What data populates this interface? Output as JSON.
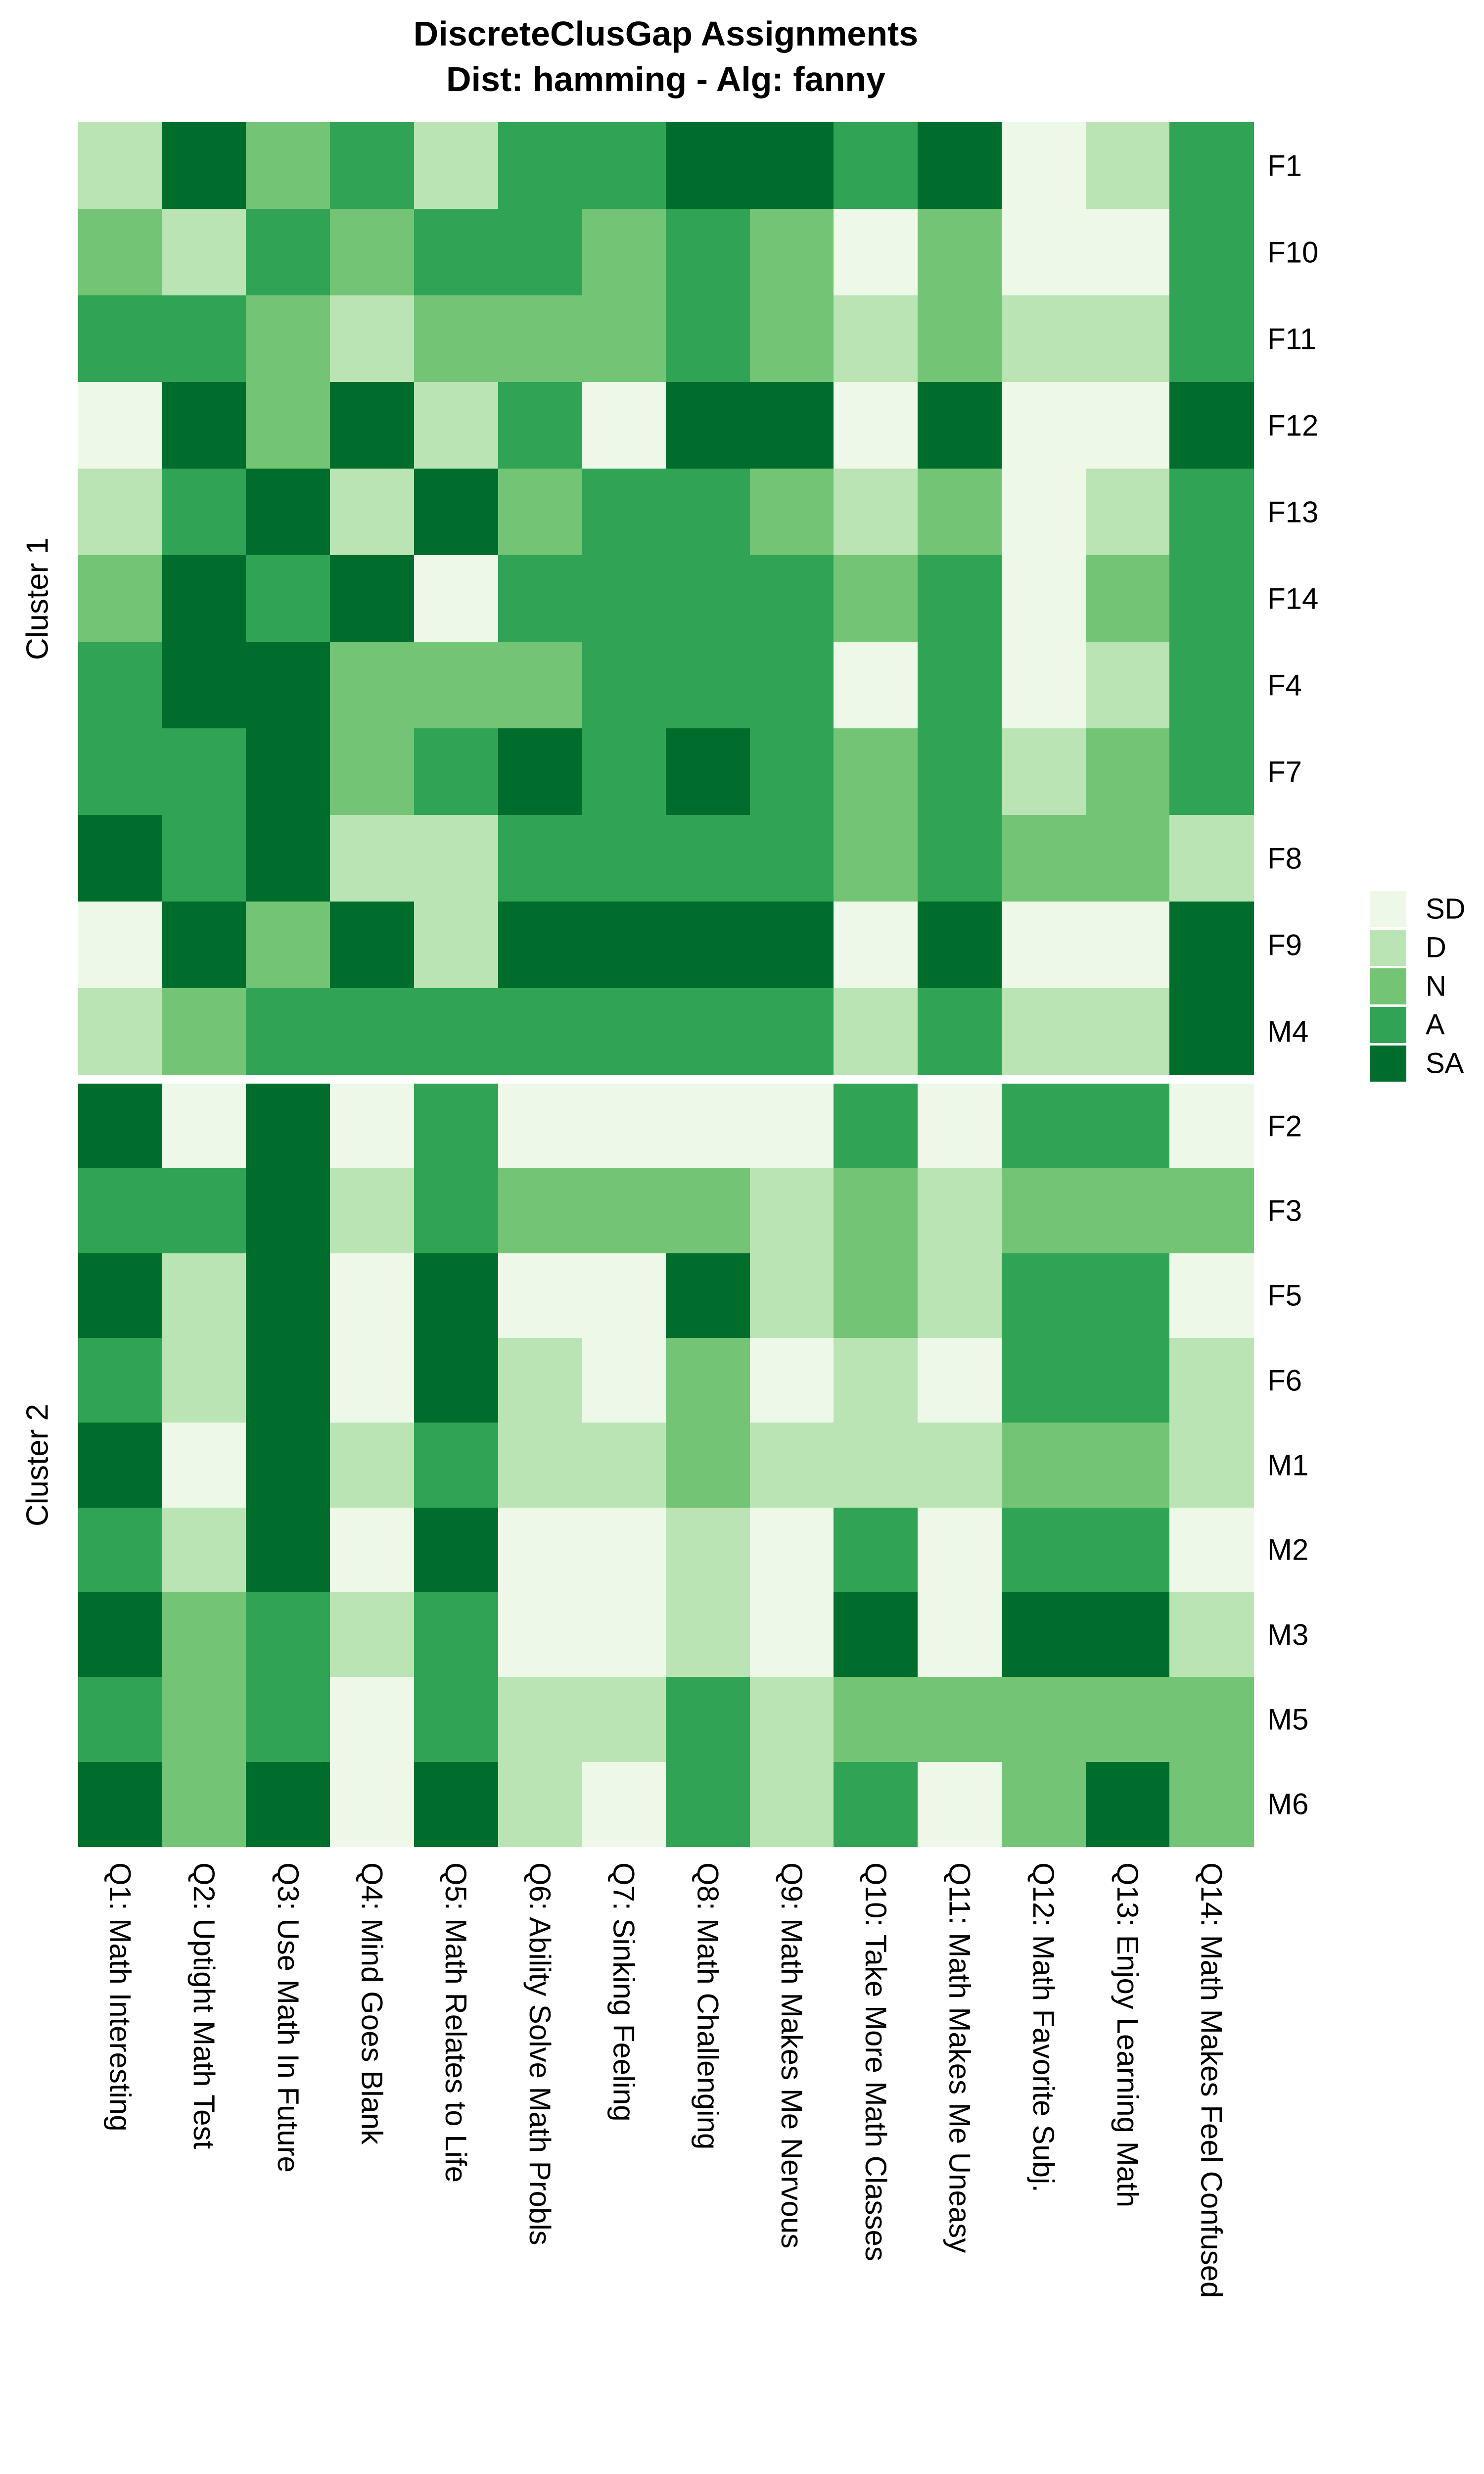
{
  "title": {
    "line1": "DiscreteClusGap Assignments",
    "line2": "Dist: hamming - Alg: fanny"
  },
  "chart_data": {
    "type": "heatmap",
    "title": "DiscreteClusGap Assignments",
    "subtitle": "Dist: hamming - Alg: fanny",
    "legend_position": "right",
    "levels": [
      "SD",
      "D",
      "N",
      "A",
      "SA"
    ],
    "level_colors": {
      "SD": "#EDF8E9",
      "D": "#BAE4B3",
      "N": "#74C476",
      "A": "#31A354",
      "SA": "#006D2C"
    },
    "columns": [
      "Q1: Math Interesting",
      "Q2: Uptight Math Test",
      "Q3: Use Math In Future",
      "Q4: Mind Goes Blank",
      "Q5: Math Relates to Life",
      "Q6: Ability Solve Math Probls",
      "Q7: Sinking Feeling",
      "Q8: Math Challenging",
      "Q9: Math Makes Me Nervous",
      "Q10: Take More Math Classes",
      "Q11: Math Makes Me Uneasy",
      "Q12: Math Favorite Subj.",
      "Q13: Enjoy Learning Math",
      "Q14: Math Makes Feel Confused"
    ],
    "facets": [
      {
        "label": "Cluster 1",
        "rows": [
          {
            "id": "F1",
            "values": [
              "D",
              "SA",
              "N",
              "A",
              "D",
              "A",
              "A",
              "SA",
              "SA",
              "A",
              "SA",
              "SD",
              "D",
              "A"
            ]
          },
          {
            "id": "F10",
            "values": [
              "N",
              "D",
              "A",
              "N",
              "A",
              "A",
              "N",
              "A",
              "N",
              "SD",
              "N",
              "SD",
              "SD",
              "A"
            ]
          },
          {
            "id": "F11",
            "values": [
              "A",
              "A",
              "N",
              "D",
              "N",
              "N",
              "N",
              "A",
              "N",
              "D",
              "N",
              "D",
              "D",
              "A"
            ]
          },
          {
            "id": "F12",
            "values": [
              "SD",
              "SA",
              "N",
              "SA",
              "D",
              "A",
              "SD",
              "SA",
              "SA",
              "SD",
              "SA",
              "SD",
              "SD",
              "SA"
            ]
          },
          {
            "id": "F13",
            "values": [
              "D",
              "A",
              "SA",
              "D",
              "SA",
              "N",
              "A",
              "A",
              "N",
              "D",
              "N",
              "SD",
              "D",
              "A"
            ]
          },
          {
            "id": "F14",
            "values": [
              "N",
              "SA",
              "A",
              "SA",
              "SD",
              "A",
              "A",
              "A",
              "A",
              "N",
              "A",
              "SD",
              "N",
              "A"
            ]
          },
          {
            "id": "F4",
            "values": [
              "A",
              "SA",
              "SA",
              "N",
              "N",
              "N",
              "A",
              "A",
              "A",
              "SD",
              "A",
              "SD",
              "D",
              "A"
            ]
          },
          {
            "id": "F7",
            "values": [
              "A",
              "A",
              "SA",
              "N",
              "A",
              "SA",
              "A",
              "SA",
              "A",
              "N",
              "A",
              "D",
              "N",
              "A"
            ]
          },
          {
            "id": "F8",
            "values": [
              "SA",
              "A",
              "SA",
              "D",
              "D",
              "A",
              "A",
              "A",
              "A",
              "N",
              "A",
              "N",
              "N",
              "D"
            ]
          },
          {
            "id": "F9",
            "values": [
              "SD",
              "SA",
              "N",
              "SA",
              "D",
              "SA",
              "SA",
              "SA",
              "SA",
              "SD",
              "SA",
              "SD",
              "SD",
              "SA"
            ]
          },
          {
            "id": "M4",
            "values": [
              "D",
              "N",
              "A",
              "A",
              "A",
              "A",
              "A",
              "A",
              "A",
              "D",
              "A",
              "D",
              "D",
              "SA"
            ]
          }
        ]
      },
      {
        "label": "Cluster 2",
        "rows": [
          {
            "id": "F2",
            "values": [
              "SA",
              "SD",
              "SA",
              "SD",
              "A",
              "SD",
              "SD",
              "SD",
              "SD",
              "A",
              "SD",
              "A",
              "A",
              "SD"
            ]
          },
          {
            "id": "F3",
            "values": [
              "A",
              "A",
              "SA",
              "D",
              "A",
              "N",
              "N",
              "N",
              "D",
              "N",
              "D",
              "N",
              "N",
              "N"
            ]
          },
          {
            "id": "F5",
            "values": [
              "SA",
              "D",
              "SA",
              "SD",
              "SA",
              "SD",
              "SD",
              "SA",
              "D",
              "N",
              "D",
              "A",
              "A",
              "SD"
            ]
          },
          {
            "id": "F6",
            "values": [
              "A",
              "D",
              "SA",
              "SD",
              "SA",
              "D",
              "SD",
              "N",
              "SD",
              "D",
              "SD",
              "A",
              "A",
              "D"
            ]
          },
          {
            "id": "M1",
            "values": [
              "SA",
              "SD",
              "SA",
              "D",
              "A",
              "D",
              "D",
              "N",
              "D",
              "D",
              "D",
              "N",
              "N",
              "D"
            ]
          },
          {
            "id": "M2",
            "values": [
              "A",
              "D",
              "SA",
              "SD",
              "SA",
              "SD",
              "SD",
              "D",
              "SD",
              "A",
              "SD",
              "A",
              "A",
              "SD"
            ]
          },
          {
            "id": "M3",
            "values": [
              "SA",
              "N",
              "A",
              "D",
              "A",
              "SD",
              "SD",
              "D",
              "SD",
              "SA",
              "SD",
              "SA",
              "SA",
              "D"
            ]
          },
          {
            "id": "M5",
            "values": [
              "A",
              "N",
              "A",
              "SD",
              "A",
              "D",
              "D",
              "A",
              "D",
              "N",
              "N",
              "N",
              "N",
              "N"
            ]
          },
          {
            "id": "M6",
            "values": [
              "SA",
              "N",
              "SA",
              "SD",
              "SA",
              "D",
              "SD",
              "A",
              "D",
              "A",
              "SD",
              "N",
              "SA",
              "N"
            ]
          }
        ]
      }
    ],
    "legend_entries": [
      "SD",
      "D",
      "N",
      "A",
      "SA"
    ]
  }
}
